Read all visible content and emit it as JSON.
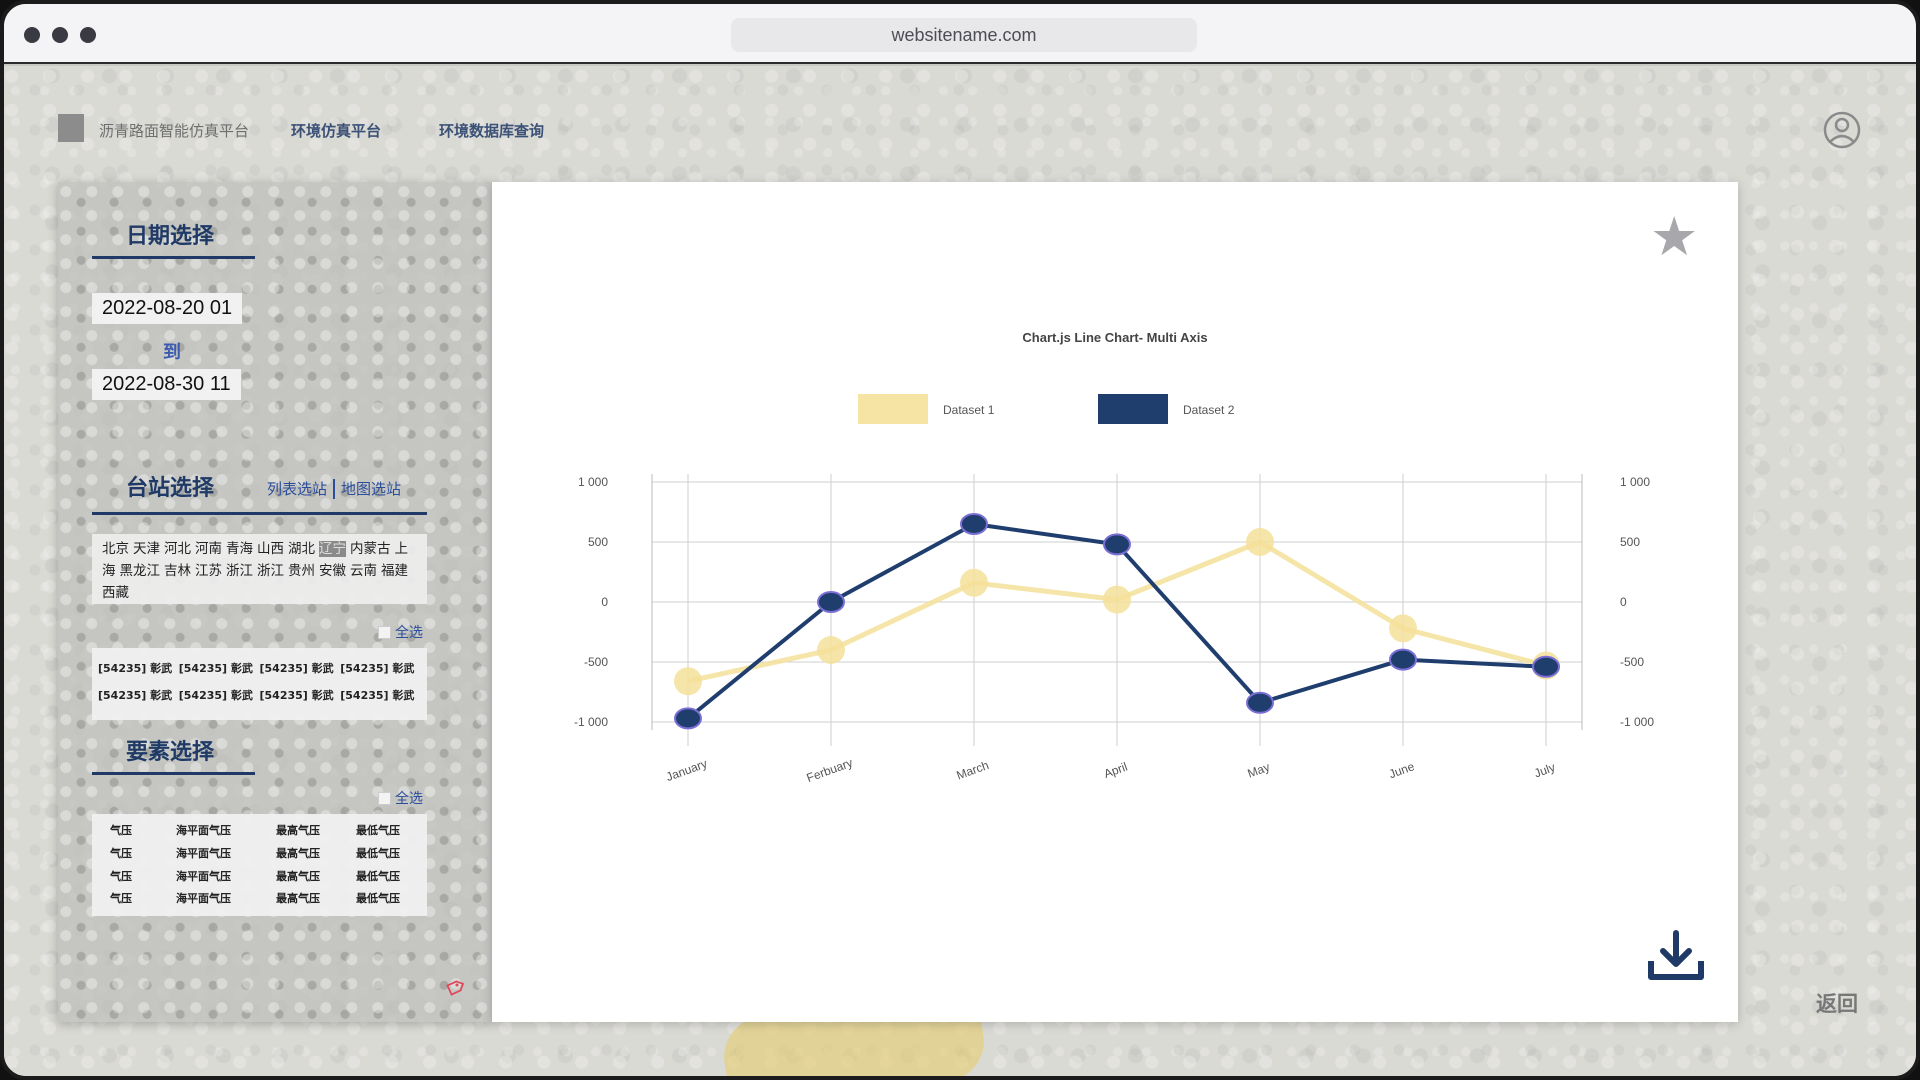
{
  "browser": {
    "url": "websitename.com"
  },
  "nav": {
    "brand": "沥青路面智能仿真平台",
    "links": [
      "环境仿真平台",
      "环境数据库查询"
    ]
  },
  "sidebar": {
    "date_section": {
      "title": "日期选择",
      "start": "2022-08-20 01",
      "to": "到",
      "end": "2022-08-30 11"
    },
    "station_section": {
      "title": "台站选择",
      "tab_list": "列表选站",
      "tab_map": "地图选站",
      "provinces": [
        "北京",
        "天津",
        "河北",
        "河南",
        "青海",
        "山西",
        "湖北",
        "辽宁",
        "内蒙古",
        "上海",
        "黑龙江",
        "吉林",
        "江苏",
        "浙江",
        "浙江",
        "贵州",
        "安徽",
        "云南",
        "福建",
        "西藏"
      ],
      "active_province": "辽宁",
      "select_all": "全选",
      "stations": [
        "[54235] 彰武",
        "[54235] 彰武",
        "[54235] 彰武",
        "[54235] 彰武",
        "[54235] 彰武",
        "[54235] 彰武",
        "[54235] 彰武",
        "[54235] 彰武"
      ]
    },
    "element_section": {
      "title": "要素选择",
      "select_all": "全选",
      "elements": [
        "气压",
        "海平面气压",
        "最高气压",
        "最低气压",
        "气压",
        "海平面气压",
        "最高气压",
        "最低气压",
        "气压",
        "海平面气压",
        "最高气压",
        "最低气压",
        "气压",
        "海平面气压",
        "最高气压",
        "最低气压"
      ]
    }
  },
  "back_label": "返回",
  "icons": {
    "user": "user-circle-icon",
    "star": "star-icon",
    "download": "download-icon",
    "tag": "tag-icon"
  },
  "chart_data": {
    "type": "line",
    "title": "Chart.js Line Chart- Multi Axis",
    "categories": [
      "January",
      "Ferbuary",
      "March",
      "April",
      "May",
      "June",
      "July"
    ],
    "series": [
      {
        "name": "Dataset 1",
        "values": [
          -660,
          -400,
          160,
          20,
          500,
          -220,
          -530
        ],
        "color": "#f5e19a"
      },
      {
        "name": "Dataset 2",
        "values": [
          -970,
          0,
          650,
          480,
          -840,
          -480,
          -540
        ],
        "color": "#1f3e6e"
      }
    ],
    "ylim": [
      -1000,
      1000
    ],
    "yticks": [
      "1 000",
      "500",
      "0",
      "-500",
      "-1 000"
    ],
    "y2ticks": [
      "1 000",
      "500",
      "0",
      "-500",
      "-1 000"
    ],
    "legend": "top",
    "grid": true
  }
}
